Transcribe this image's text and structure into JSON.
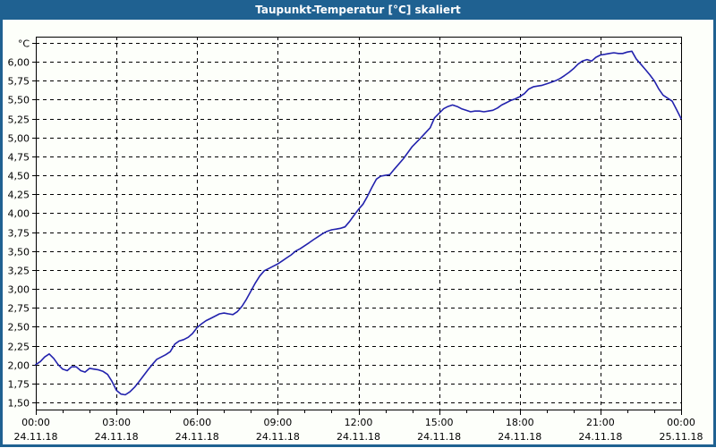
{
  "window": {
    "title": "Taupunkt-Temperatur [°C] skaliert"
  },
  "colors": {
    "titlebar_bg": "#1f6191",
    "titlebar_fg": "#ffffff",
    "panel_bg": "#fdfffa",
    "plot_bg": "#fdfffa",
    "grid": "#000000",
    "frame": "#000000",
    "series_line": "#2222ad"
  },
  "chart_data": {
    "type": "line",
    "title": "Taupunkt-Temperatur [°C] skaliert",
    "legend_position": "none",
    "grid": "dashed",
    "y_axis": {
      "unit": "°C",
      "min": 1.5,
      "max": 6.25,
      "step": 0.25,
      "tick_labels": [
        "1,50",
        "1,75",
        "2,00",
        "2,25",
        "2,50",
        "2,75",
        "3,00",
        "3,25",
        "3,50",
        "3,75",
        "4,00",
        "4,25",
        "4,50",
        "4,75",
        "5,00",
        "5,25",
        "5,50",
        "5,75",
        "6,00"
      ]
    },
    "x_axis": {
      "range_hours": [
        0,
        24
      ],
      "major_tick_hours": 3,
      "minor_tick_hours": 1,
      "ticks": [
        {
          "time": "00:00",
          "date": "24.11.18"
        },
        {
          "time": "03:00",
          "date": "24.11.18"
        },
        {
          "time": "06:00",
          "date": "24.11.18"
        },
        {
          "time": "09:00",
          "date": "24.11.18"
        },
        {
          "time": "12:00",
          "date": "24.11.18"
        },
        {
          "time": "15:00",
          "date": "24.11.18"
        },
        {
          "time": "18:00",
          "date": "24.11.18"
        },
        {
          "time": "21:00",
          "date": "24.11.18"
        },
        {
          "time": "00:00",
          "date": "25.11.18"
        }
      ]
    },
    "series": [
      {
        "name": "Taupunkt-Temperatur [°C] skaliert",
        "color": "#2222ad",
        "x_hours": [
          0.0,
          0.17,
          0.33,
          0.5,
          0.67,
          0.83,
          1.0,
          1.17,
          1.33,
          1.5,
          1.67,
          1.83,
          2.0,
          2.17,
          2.33,
          2.5,
          2.67,
          2.83,
          3.0,
          3.17,
          3.33,
          3.5,
          3.67,
          3.83,
          4.0,
          4.17,
          4.33,
          4.5,
          4.67,
          4.83,
          5.0,
          5.17,
          5.33,
          5.5,
          5.67,
          5.83,
          6.0,
          6.17,
          6.33,
          6.5,
          6.67,
          6.83,
          7.0,
          7.17,
          7.33,
          7.5,
          7.67,
          7.83,
          8.0,
          8.17,
          8.33,
          8.5,
          8.67,
          8.83,
          9.0,
          9.17,
          9.33,
          9.5,
          9.67,
          9.83,
          10.0,
          10.17,
          10.33,
          10.5,
          10.67,
          10.83,
          11.0,
          11.17,
          11.33,
          11.5,
          11.67,
          11.83,
          12.0,
          12.17,
          12.33,
          12.5,
          12.67,
          12.83,
          13.0,
          13.17,
          13.33,
          13.67,
          14.0,
          14.33,
          14.67,
          14.83,
          15.0,
          15.17,
          15.33,
          15.5,
          15.67,
          15.83,
          16.0,
          16.17,
          16.33,
          16.5,
          16.67,
          16.83,
          17.0,
          17.17,
          17.33,
          17.5,
          17.67,
          17.83,
          18.0,
          18.17,
          18.33,
          18.5,
          18.67,
          18.83,
          19.0,
          19.17,
          19.33,
          19.5,
          19.67,
          19.83,
          20.0,
          20.17,
          20.33,
          20.5,
          20.67,
          20.83,
          21.0,
          21.17,
          21.33,
          21.5,
          21.67,
          21.83,
          22.0,
          22.17,
          22.33,
          22.5,
          22.67,
          22.83,
          23.0,
          23.17,
          23.33,
          23.5,
          23.67,
          23.83,
          24.0
        ],
        "values": [
          2.0,
          2.04,
          2.1,
          2.14,
          2.08,
          2.0,
          1.94,
          1.92,
          1.97,
          1.97,
          1.92,
          1.9,
          1.95,
          1.94,
          1.93,
          1.91,
          1.87,
          1.78,
          1.66,
          1.61,
          1.6,
          1.64,
          1.7,
          1.77,
          1.85,
          1.93,
          2.0,
          2.07,
          2.1,
          2.13,
          2.17,
          2.27,
          2.31,
          2.33,
          2.36,
          2.41,
          2.49,
          2.54,
          2.58,
          2.61,
          2.64,
          2.67,
          2.68,
          2.67,
          2.66,
          2.7,
          2.77,
          2.86,
          2.97,
          3.08,
          3.17,
          3.24,
          3.27,
          3.3,
          3.33,
          3.37,
          3.41,
          3.45,
          3.5,
          3.53,
          3.57,
          3.61,
          3.65,
          3.69,
          3.73,
          3.76,
          3.78,
          3.79,
          3.8,
          3.82,
          3.89,
          3.97,
          4.05,
          4.12,
          4.22,
          4.34,
          4.45,
          4.49,
          4.5,
          4.51,
          4.58,
          4.72,
          4.88,
          5.0,
          5.13,
          5.26,
          5.32,
          5.38,
          5.41,
          5.43,
          5.41,
          5.38,
          5.36,
          5.34,
          5.35,
          5.35,
          5.34,
          5.35,
          5.36,
          5.39,
          5.43,
          5.46,
          5.49,
          5.51,
          5.54,
          5.58,
          5.64,
          5.67,
          5.68,
          5.69,
          5.71,
          5.73,
          5.75,
          5.78,
          5.82,
          5.86,
          5.91,
          5.97,
          6.01,
          6.03,
          6.01,
          6.06,
          6.09,
          6.1,
          6.11,
          6.12,
          6.11,
          6.11,
          6.13,
          6.14,
          6.04,
          5.97,
          5.9,
          5.83,
          5.75,
          5.64,
          5.56,
          5.52,
          5.48,
          5.37,
          5.25
        ]
      }
    ]
  }
}
